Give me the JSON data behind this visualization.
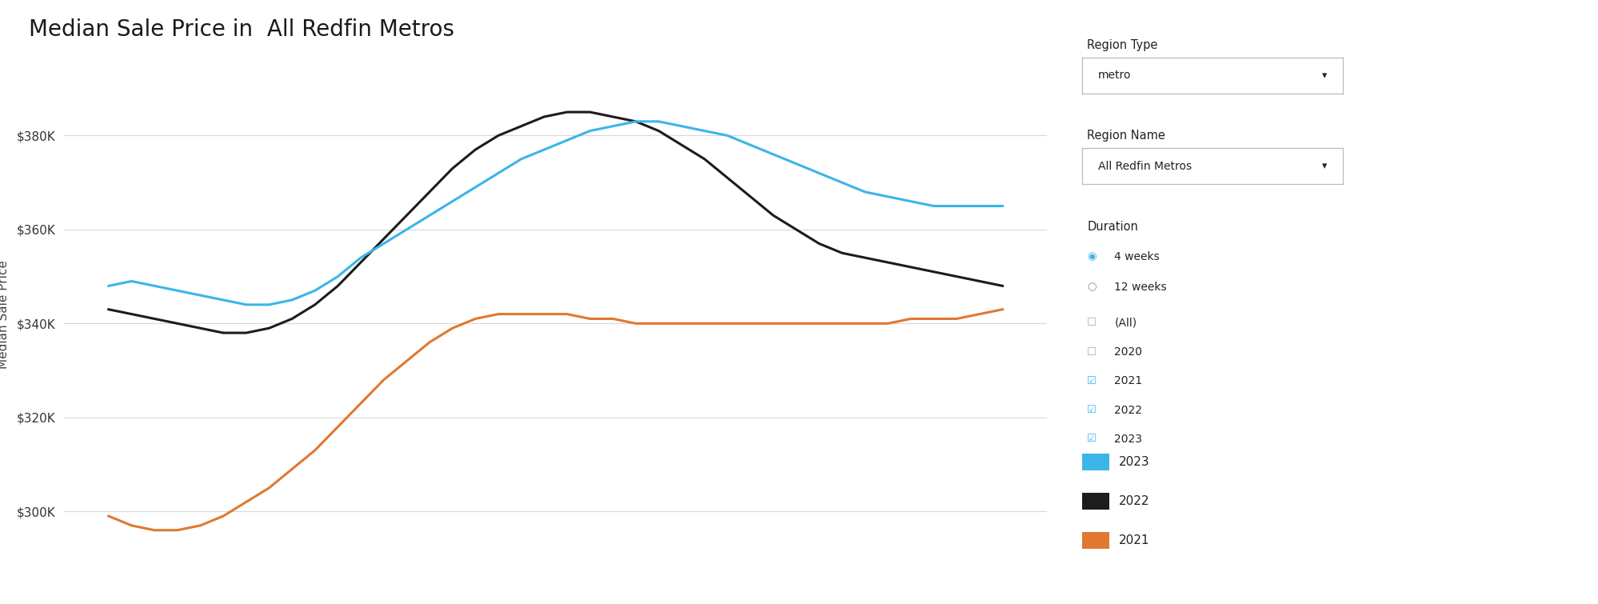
{
  "title": "Median Sale Price in  All Redfin Metros",
  "ylabel": "Median Sale Price",
  "background_color": "#ffffff",
  "title_fontsize": 20,
  "label_fontsize": 11,
  "tick_fontsize": 11,
  "ylim": [
    288000,
    396000
  ],
  "yticks": [
    300000,
    320000,
    340000,
    360000,
    380000
  ],
  "line_width": 2.2,
  "colors": {
    "2023": "#3bb5e8",
    "2022": "#1c1c1c",
    "2021": "#e07830"
  },
  "n_points": 40,
  "data_2023": [
    348000,
    349000,
    348000,
    347000,
    346000,
    345000,
    344000,
    344000,
    345000,
    347000,
    350000,
    354000,
    357000,
    360000,
    363000,
    366000,
    369000,
    372000,
    375000,
    377000,
    379000,
    381000,
    382000,
    383000,
    383000,
    382000,
    381000,
    380000,
    378000,
    376000,
    374000,
    372000,
    370000,
    368000,
    367000,
    366000,
    365000,
    365000,
    365000,
    365000
  ],
  "data_2022": [
    343000,
    342000,
    341000,
    340000,
    339000,
    338000,
    338000,
    339000,
    341000,
    344000,
    348000,
    353000,
    358000,
    363000,
    368000,
    373000,
    377000,
    380000,
    382000,
    384000,
    385000,
    385000,
    384000,
    383000,
    381000,
    378000,
    375000,
    371000,
    367000,
    363000,
    360000,
    357000,
    355000,
    354000,
    353000,
    352000,
    351000,
    350000,
    349000,
    348000
  ],
  "data_2021": [
    299000,
    297000,
    296000,
    296000,
    297000,
    299000,
    302000,
    305000,
    309000,
    313000,
    318000,
    323000,
    328000,
    332000,
    336000,
    339000,
    341000,
    342000,
    342000,
    342000,
    342000,
    341000,
    341000,
    340000,
    340000,
    340000,
    340000,
    340000,
    340000,
    340000,
    340000,
    340000,
    340000,
    340000,
    340000,
    341000,
    341000,
    341000,
    342000,
    343000
  ],
  "sidebar": {
    "region_type_label": "Region Type",
    "region_type_value": "metro",
    "region_name_label": "Region Name",
    "region_name_value": "All Redfin Metros",
    "duration_label": "Duration",
    "duration_options": [
      "4 weeks",
      "12 weeks"
    ],
    "duration_selected": "4 weeks",
    "checkboxes": [
      "(All)",
      "2020",
      "2021",
      "2022",
      "2023"
    ],
    "checked": [
      "2021",
      "2022",
      "2023"
    ]
  }
}
